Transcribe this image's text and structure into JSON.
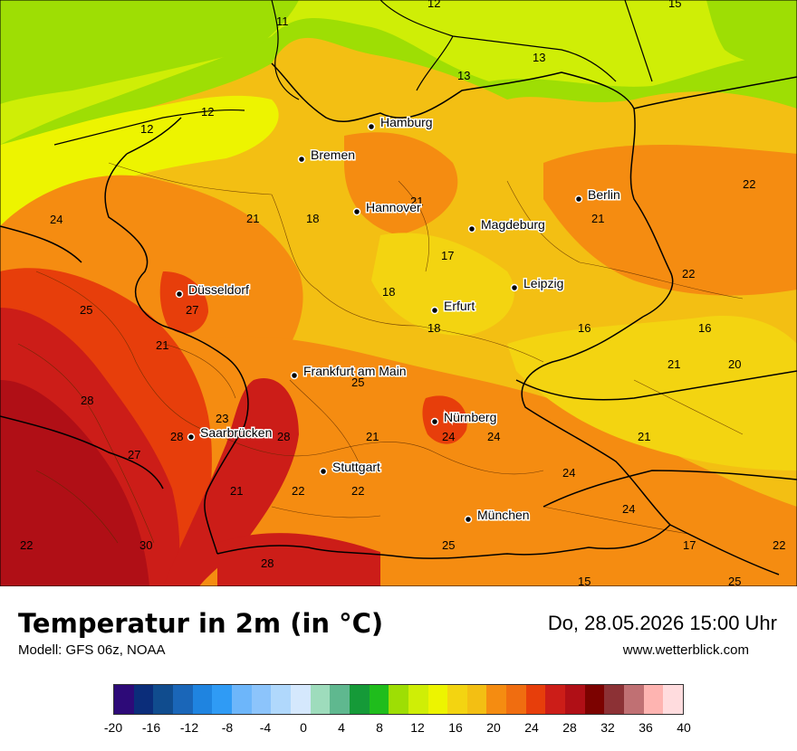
{
  "title": "Temperatur in 2m (in °C)",
  "model": "Modell: GFS 06z, NOAA",
  "datetime": "Do, 28.05.2026 15:00 Uhr",
  "website": "www.wetterblick.com",
  "colors": {
    "palette": [
      "#2d0a78",
      "#0b2d7a",
      "#104c8e",
      "#1a66b8",
      "#1f84e0",
      "#2f9bf5",
      "#6db6fa",
      "#8cc4fb",
      "#b0d8fc",
      "#d5e8fd",
      "#9edcbc",
      "#5fb88f",
      "#159a38",
      "#1fbd1c",
      "#9ede04",
      "#cfee06",
      "#edf400",
      "#f3d411",
      "#f3bf13",
      "#f58c11",
      "#f06d10",
      "#e73e0b",
      "#cc1d18",
      "#b00f16",
      "#7c0200",
      "#8c3135",
      "#c07073",
      "#feb4b1",
      "#ffdcde"
    ]
  },
  "colorbar": {
    "ticks": [
      "-20",
      "-16",
      "-12",
      "-8",
      "-4",
      "0",
      "4",
      "8",
      "12",
      "16",
      "20",
      "24",
      "28",
      "32",
      "36",
      "40"
    ]
  },
  "cities": [
    {
      "name": "Hamburg"
    },
    {
      "name": "Bremen"
    },
    {
      "name": "Hannover"
    },
    {
      "name": "Berlin"
    },
    {
      "name": "Magdeburg"
    },
    {
      "name": "Düsseldorf"
    },
    {
      "name": "Leipzig"
    },
    {
      "name": "Erfurt"
    },
    {
      "name": "Frankfurt am Main"
    },
    {
      "name": "Nürnberg"
    },
    {
      "name": "Saarbrücken"
    },
    {
      "name": "Stuttgart"
    },
    {
      "name": "München"
    }
  ],
  "isolabels": [
    "11",
    "12",
    "12",
    "12",
    "13",
    "13",
    "15",
    "21",
    "21",
    "18",
    "22",
    "24",
    "21",
    "21",
    "17",
    "18",
    "22",
    "25",
    "27",
    "18",
    "16",
    "16",
    "21",
    "21",
    "20",
    "28",
    "23",
    "25",
    "28",
    "28",
    "21",
    "24",
    "24",
    "27",
    "21",
    "22",
    "22",
    "24",
    "22",
    "24",
    "30",
    "25",
    "28",
    "17",
    "22",
    "15",
    "25"
  ]
}
